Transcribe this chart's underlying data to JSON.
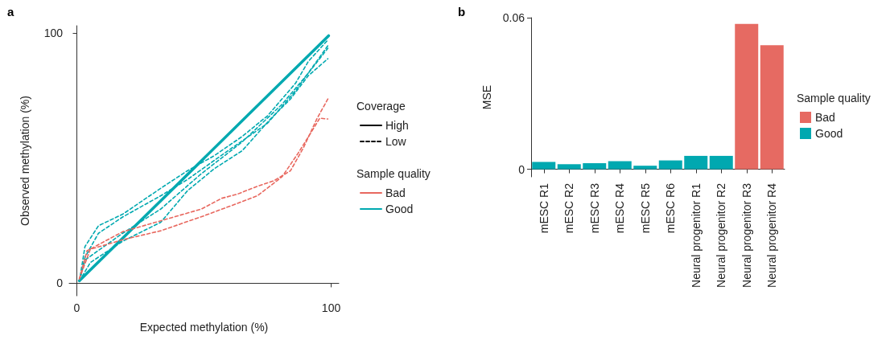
{
  "chart_data": [
    {
      "type": "line",
      "title": "a",
      "xlabel": "Expected methylation (%)",
      "ylabel": "Observed methylation (%)",
      "legend_title": [
        "Coverage",
        "Sample quality"
      ],
      "xlim": [
        -3,
        103
      ],
      "ylim": [
        -5,
        103
      ],
      "xticks": [
        0,
        100
      ],
      "yticks": [
        0,
        100
      ],
      "grid": false,
      "legend": "right",
      "marker": "none",
      "series": [
        {
          "color": "#00a9b0",
          "line_style": "solid",
          "x": [
            1,
            99
          ],
          "values": [
            1,
            99
          ]
        },
        {
          "color": "#00a9b0",
          "line_style": "dashed",
          "x": [
            1,
            3.2,
            8.5,
            18,
            33,
            43.5,
            54,
            65,
            75,
            86,
            91,
            98.7
          ],
          "values": [
            0.8,
            14.7,
            23,
            27.6,
            38,
            45,
            51,
            58.7,
            67,
            80,
            88.7,
            97.3
          ]
        },
        {
          "color": "#00a9b0",
          "line_style": "dashed",
          "x": [
            1,
            3.2,
            8.5,
            18,
            33,
            43.5,
            59.4,
            75,
            86,
            98.7
          ],
          "values": [
            0.8,
            10.4,
            20,
            26.5,
            35,
            41.5,
            53,
            64,
            77,
            95
          ]
        },
        {
          "color": "#00a9b0",
          "line_style": "dashed",
          "x": [
            1,
            3.2,
            18,
            33,
            48.8,
            65,
            80.7,
            91,
            98.7
          ],
          "values": [
            0.8,
            9.3,
            20,
            29.7,
            43.7,
            56.5,
            71.6,
            84,
            94
          ]
        },
        {
          "color": "#00a9b0",
          "line_style": "dashed",
          "x": [
            1,
            5.3,
            18,
            33,
            43.5,
            54,
            65,
            76.4,
            84,
            91,
            98.7
          ],
          "values": [
            0.8,
            8.3,
            16.8,
            24.4,
            37,
            45.8,
            53,
            66,
            73.7,
            83,
            89.8
          ]
        },
        {
          "color": "#e8685f",
          "line_style": "dashed",
          "x": [
            1,
            4,
            18,
            33,
            49,
            57,
            63,
            71,
            77.5,
            84,
            89,
            94.5,
            98.7
          ],
          "values": [
            1.8,
            13,
            20.6,
            25,
            29.7,
            34,
            35.6,
            38.8,
            41,
            45,
            54,
            66,
            73.7
          ]
        },
        {
          "color": "#e8685f",
          "line_style": "dashed",
          "x": [
            1,
            5.3,
            18,
            33,
            50,
            63,
            71,
            80.7,
            87,
            92.4,
            95.5,
            98.7
          ],
          "values": [
            1.8,
            13.6,
            17.4,
            21,
            27,
            31.9,
            35,
            42.6,
            52,
            60.8,
            66,
            65.7
          ]
        },
        {
          "name": "High",
          "color": "#000000",
          "line_style": "solid"
        },
        {
          "name": "Low",
          "color": "#000000",
          "line_style": "dashed"
        },
        {
          "name": "Bad",
          "color": "#e8685f",
          "line_style": "solid"
        },
        {
          "name": "Good",
          "color": "#00a9b0",
          "line_style": "solid"
        }
      ]
    },
    {
      "type": "bar",
      "title": "b",
      "ylabel": "MSE",
      "legend_title": [
        "Sample quality"
      ],
      "ylim": [
        -0.003,
        0.06
      ],
      "yticks": [
        0,
        0.06
      ],
      "grid": false,
      "legend": "right",
      "stacked": true,
      "categories": [
        "mESC R1",
        "mESC R2",
        "mESC R3",
        "mESC R4",
        "mESC R5",
        "mESC R6",
        "Neural progenitor R1",
        "Neural progenitor R2",
        "Neural progenitor R3",
        "Neural progenitor R4"
      ],
      "series": [
        {
          "name": "Bad",
          "color": "#e66a62",
          "values": [
            null,
            null,
            null,
            null,
            null,
            null,
            null,
            null,
            0.0575,
            0.0491
          ]
        },
        {
          "name": "Good",
          "color": "#00a8b0",
          "values": [
            0.0029,
            0.002,
            0.0024,
            0.0032,
            0.0014,
            0.0035,
            0.0053,
            0.0053,
            null,
            null
          ]
        }
      ]
    }
  ]
}
